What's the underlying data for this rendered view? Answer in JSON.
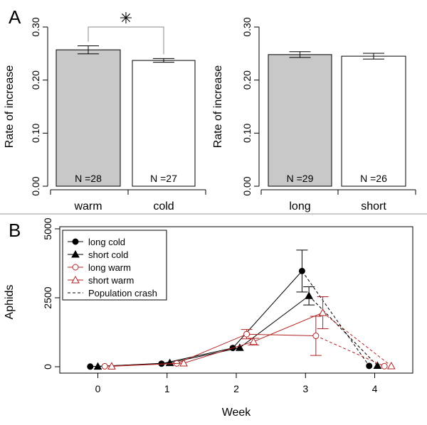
{
  "figure": {
    "panel_labels": [
      "A",
      "B"
    ],
    "colors": {
      "bar_fill": "#c8c8c8",
      "bar_fill_alt": "#ffffff",
      "black": "#000000",
      "red": "#b22222"
    }
  },
  "chart_data": [
    {
      "type": "bar",
      "panel": "A",
      "categories": [
        "warm",
        "cold"
      ],
      "values": [
        0.257,
        0.237
      ],
      "errors": [
        0.0075,
        0.0035
      ],
      "n_labels": [
        "N =28",
        "N =27"
      ],
      "fills": [
        "#c8c8c8",
        "#ffffff"
      ],
      "ylabel": "Rate of increase",
      "ylim": [
        0,
        0.3
      ],
      "yticks": [
        0.0,
        0.1,
        0.2,
        0.3
      ],
      "ytick_labels": [
        "0.00",
        "0.10",
        "0.20",
        "0.30"
      ],
      "significance": "✳"
    },
    {
      "type": "bar",
      "categories": [
        "long",
        "short"
      ],
      "values": [
        0.248,
        0.245
      ],
      "errors": [
        0.0055,
        0.0055
      ],
      "n_labels": [
        "N =29",
        "N =26"
      ],
      "fills": [
        "#c8c8c8",
        "#ffffff"
      ],
      "ylabel": "Rate of increase",
      "ylim": [
        0,
        0.3
      ],
      "yticks": [
        0.0,
        0.1,
        0.2,
        0.3
      ],
      "ytick_labels": [
        "0.00",
        "0.10",
        "0.20",
        "0.30"
      ]
    },
    {
      "type": "line",
      "panel": "B",
      "xlabel": "Week",
      "ylabel": "Aphids",
      "x": [
        0,
        1,
        2,
        3,
        4
      ],
      "xlim": [
        -0.55,
        4.55
      ],
      "ylim": [
        0,
        5000
      ],
      "yticks": [
        0,
        2500,
        5000
      ],
      "ytick_labels": [
        "0",
        "2500",
        "5000"
      ],
      "legend_position": "top-left",
      "series": [
        {
          "name": "long cold",
          "color": "#000000",
          "marker": "filled-circle",
          "x": [
            -0.11,
            0.92,
            1.95,
            2.95,
            3.92
          ],
          "y": [
            5,
            110,
            680,
            3470,
            30
          ],
          "err": [
            0,
            0,
            0,
            760,
            0
          ]
        },
        {
          "name": "short cold",
          "color": "#000000",
          "marker": "filled-triangle",
          "x": [
            0.0,
            1.04,
            2.05,
            3.05,
            4.04
          ],
          "y": [
            10,
            140,
            690,
            2570,
            40
          ],
          "err": [
            0,
            0,
            0,
            330,
            0
          ]
        },
        {
          "name": "long warm",
          "color": "#b22222",
          "marker": "open-circle",
          "x": [
            0.1,
            1.14,
            2.15,
            3.15,
            4.14
          ],
          "y": [
            15,
            120,
            1180,
            1120,
            20
          ],
          "err": [
            0,
            0,
            170,
            710,
            0
          ]
        },
        {
          "name": "short warm",
          "color": "#b22222",
          "marker": "open-triangle",
          "x": [
            0.2,
            1.24,
            2.25,
            3.25,
            4.24
          ],
          "y": [
            15,
            130,
            910,
            1960,
            25
          ],
          "err": [
            0,
            0,
            120,
            580,
            0
          ]
        }
      ],
      "crash_legend": "Population crash"
    }
  ]
}
